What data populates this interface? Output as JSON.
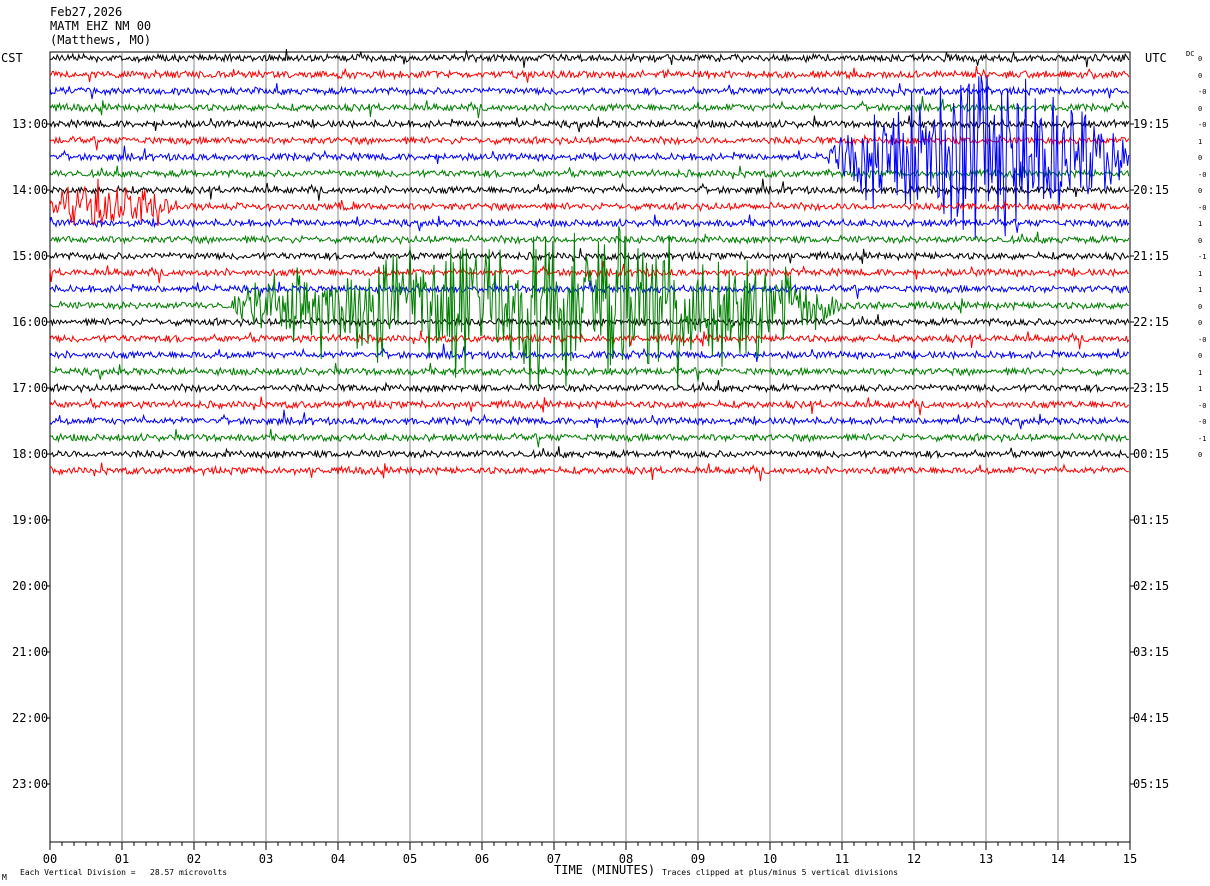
{
  "header": {
    "date": "Feb27,2026",
    "station": "MATM EHZ NM 00",
    "location": "(Matthews, MO)"
  },
  "left_tz": "CST",
  "right_tz": "UTC",
  "dc_label": "DC",
  "footer": {
    "scale": "Each Vertical Division =   28.57 microvolts",
    "xlabel": "TIME (MINUTES)",
    "clip_note": "Traces clipped at plus/minus 5 vertical divisions",
    "corner_mark": "M"
  },
  "colors": {
    "trace_cycle": [
      "#000000",
      "#ff0000",
      "#0000ff",
      "#007f00"
    ],
    "grid": "#888888"
  },
  "chart_data": {
    "type": "line",
    "title": "MATM EHZ NM 00 (Matthews, MO)",
    "xlabel": "TIME (MINUTES)",
    "xlim": [
      0,
      15
    ],
    "x_ticks": [
      "00",
      "01",
      "02",
      "03",
      "04",
      "05",
      "06",
      "07",
      "08",
      "09",
      "10",
      "11",
      "12",
      "13",
      "14",
      "15"
    ],
    "rows_per_hour": 4,
    "total_rows": 48,
    "traces_drawn": 26,
    "left_hour_labels": [
      "13:00",
      "14:00",
      "15:00",
      "16:00",
      "17:00",
      "18:00",
      "19:00",
      "20:00",
      "21:00",
      "22:00",
      "23:00"
    ],
    "right_hour_labels": [
      "19:15",
      "20:15",
      "21:15",
      "22:15",
      "23:15",
      "00:15",
      "01:15",
      "02:15",
      "03:15",
      "04:15",
      "05:15"
    ],
    "dc_offsets": [
      "0",
      "0",
      "-0",
      "0",
      "-0",
      "1",
      "0",
      "-0",
      "0",
      "-0",
      "1",
      "0",
      "-1",
      "1",
      "1",
      "0",
      "0",
      "-0",
      "0",
      "1",
      "1",
      "-0",
      "-0",
      "-1",
      "0"
    ],
    "events": [
      {
        "trace": 6,
        "start_min": 10.8,
        "end_min": 15.0,
        "peak_min": 12.9,
        "amplitude_divisions": 5
      },
      {
        "trace": 15,
        "start_min": 2.5,
        "end_min": 11.0,
        "peak_min": 7.5,
        "amplitude_divisions": 5
      },
      {
        "trace": 9,
        "start_min": 0.0,
        "end_min": 1.8,
        "peak_min": 0.3,
        "amplitude_divisions": 1.5
      }
    ],
    "clip_divisions": 5,
    "division_microvolts": 28.57
  }
}
